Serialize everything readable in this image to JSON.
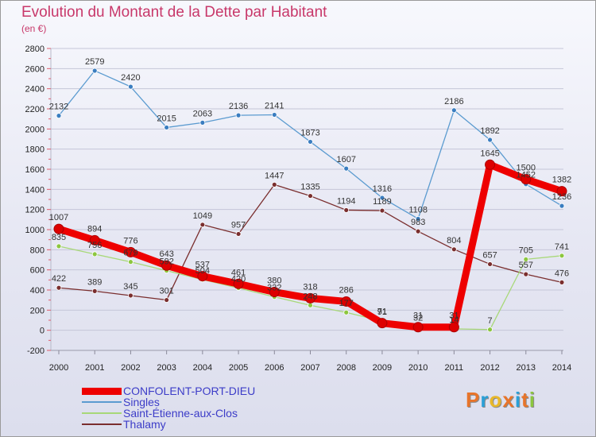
{
  "header": {
    "title": "Evolution du Montant de la Dette par Habitant",
    "unit": "(en €)"
  },
  "brand": {
    "letters": [
      "P",
      "r",
      "o",
      "x",
      "i",
      "t",
      "i"
    ],
    "colors": [
      "#e8742a",
      "#2aa0d8",
      "#e8b82a",
      "#e8742a",
      "#2aa0d8",
      "#e8742a",
      "#8cc63f"
    ]
  },
  "colors": {
    "title": "#c8386a",
    "grid": "#c5c6d8",
    "tick": "#e05a6a",
    "legend_text": "#3c3cc8"
  },
  "chart_data": {
    "type": "line",
    "x": [
      "2000",
      "2001",
      "2002",
      "2003",
      "2004",
      "2005",
      "2006",
      "2007",
      "2008",
      "2009",
      "2010",
      "2011",
      "2012",
      "2013",
      "2014"
    ],
    "ylim": [
      -200,
      2800
    ],
    "yticks": [
      "-200",
      "0",
      "200",
      "400",
      "600",
      "800",
      "1000",
      "1200",
      "1400",
      "1600",
      "1800",
      "2000",
      "2200",
      "2400",
      "2600",
      "2800"
    ],
    "grid": true,
    "legend_position": "bottom-left",
    "series": [
      {
        "name": "Singles",
        "color": "#5b9bd0",
        "marker": "#3a7dc0",
        "values": [
          2132,
          2579,
          2420,
          2015,
          2063,
          2136,
          2141,
          1873,
          1607,
          1316,
          1108,
          2186,
          1892,
          1452,
          1236
        ],
        "labels": [
          "2132",
          "2579",
          "2420",
          "2015",
          "2063",
          "2136",
          "2141",
          "1873",
          "1607",
          "1316",
          "1108",
          "2186",
          "1892",
          "1452",
          "1236"
        ]
      },
      {
        "name": "Thalamy",
        "color": "#7a2e2e",
        "marker": "#7a2e2e",
        "values": [
          422,
          389,
          345,
          301,
          1049,
          957,
          1447,
          1335,
          1194,
          1189,
          983,
          804,
          657,
          557,
          476
        ],
        "labels": [
          "422",
          "389",
          "345",
          "301",
          "1049",
          "957",
          "1447",
          "1335",
          "1194",
          "1189",
          "983",
          "804",
          "657",
          "557",
          "476"
        ]
      },
      {
        "name": "Saint-Étienne-aux-Clos",
        "color": "#a8d878",
        "marker": "#8cc63f",
        "values": [
          835,
          756,
          679,
          592,
          504,
          420,
          332,
          248,
          177,
          91,
          32,
          14,
          7,
          705,
          741
        ],
        "labels": [
          "835",
          "756",
          "679",
          "592",
          "504",
          "420",
          "332",
          "248",
          "177",
          "91",
          "32",
          "14",
          "7",
          "705",
          "741"
        ]
      },
      {
        "name": "CONFOLENT-PORT-DIEU",
        "color": "#ee0000",
        "marker": "#dd0000",
        "values": [
          1007,
          894,
          776,
          643,
          537,
          461,
          380,
          318,
          286,
          71,
          31,
          31,
          1645,
          1500,
          1382
        ],
        "labels": [
          "1007",
          "894",
          "776",
          "643",
          "537",
          "461",
          "380",
          "318",
          "286",
          "71",
          "31",
          "31",
          "1645",
          "1500",
          "1382"
        ]
      }
    ],
    "legend_order": [
      "CONFOLENT-PORT-DIEU",
      "Singles",
      "Saint-Étienne-aux-Clos",
      "Thalamy"
    ]
  }
}
